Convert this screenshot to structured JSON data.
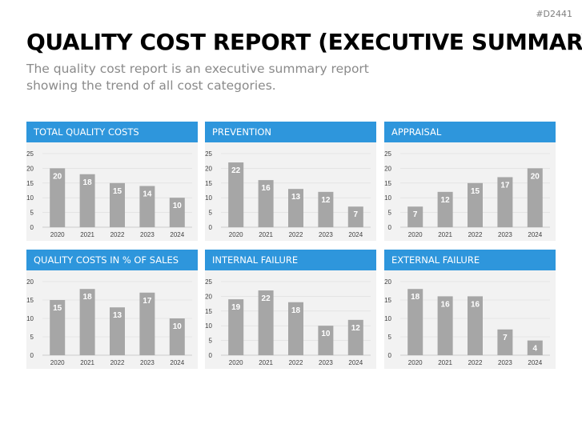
{
  "doc_id": "#D2441",
  "header": {
    "title": "QUALITY COST REPORT (EXECUTIVE SUMMARY)",
    "subtitle": "The quality cost report is an executive summary report showing the trend of all cost categories."
  },
  "colors": {
    "header_blue": "#2e96dc",
    "bar_gray": "#a6a6a6",
    "panel_bg": "#f2f2f2"
  },
  "chart_data": [
    {
      "id": "total-quality-costs",
      "type": "bar",
      "title": "TOTAL QUALITY COSTS",
      "categories": [
        "2020",
        "2021",
        "2022",
        "2023",
        "2024"
      ],
      "values": [
        20,
        18,
        15,
        14,
        10
      ],
      "ylim": [
        0,
        25
      ],
      "yticks": [
        0,
        5,
        10,
        15,
        20,
        25
      ],
      "grid": true,
      "data_labels": true
    },
    {
      "id": "prevention",
      "type": "bar",
      "title": "PREVENTION",
      "categories": [
        "2020",
        "2021",
        "2022",
        "2023",
        "2024"
      ],
      "values": [
        22,
        16,
        13,
        12,
        7
      ],
      "ylim": [
        0,
        25
      ],
      "yticks": [
        0,
        5,
        10,
        15,
        20,
        25
      ],
      "grid": true,
      "data_labels": true
    },
    {
      "id": "appraisal",
      "type": "bar",
      "title": "APPRAISAL",
      "categories": [
        "2020",
        "2021",
        "2022",
        "2023",
        "2024"
      ],
      "values": [
        7,
        12,
        15,
        17,
        20
      ],
      "ylim": [
        0,
        25
      ],
      "yticks": [
        0,
        5,
        10,
        15,
        20,
        25
      ],
      "grid": true,
      "data_labels": true
    },
    {
      "id": "quality-costs-percent-of-sales",
      "type": "bar",
      "title": "QUALITY COSTS IN % OF SALES",
      "categories": [
        "2020",
        "2021",
        "2022",
        "2023",
        "2024"
      ],
      "values": [
        15,
        18,
        13,
        17,
        10
      ],
      "ylim": [
        0,
        20
      ],
      "yticks": [
        0,
        5,
        10,
        15,
        20
      ],
      "grid": true,
      "data_labels": true
    },
    {
      "id": "internal-failure",
      "type": "bar",
      "title": "INTERNAL FAILURE",
      "categories": [
        "2020",
        "2021",
        "2022",
        "2023",
        "2024"
      ],
      "values": [
        19,
        22,
        18,
        10,
        12
      ],
      "ylim": [
        0,
        25
      ],
      "yticks": [
        0,
        5,
        10,
        15,
        20,
        25
      ],
      "grid": true,
      "data_labels": true
    },
    {
      "id": "external-failure",
      "type": "bar",
      "title": "EXTERNAL FAILURE",
      "categories": [
        "2020",
        "2021",
        "2022",
        "2023",
        "2024"
      ],
      "values": [
        18,
        16,
        16,
        7,
        4
      ],
      "ylim": [
        0,
        20
      ],
      "yticks": [
        0,
        5,
        10,
        15,
        20
      ],
      "grid": true,
      "data_labels": true
    }
  ]
}
